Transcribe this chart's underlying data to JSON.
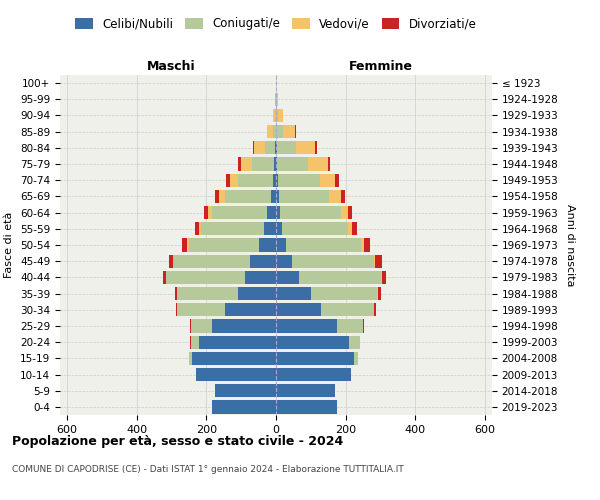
{
  "age_groups": [
    "0-4",
    "5-9",
    "10-14",
    "15-19",
    "20-24",
    "25-29",
    "30-34",
    "35-39",
    "40-44",
    "45-49",
    "50-54",
    "55-59",
    "60-64",
    "65-69",
    "70-74",
    "75-79",
    "80-84",
    "85-89",
    "90-94",
    "95-99",
    "100+"
  ],
  "birth_years": [
    "2019-2023",
    "2014-2018",
    "2009-2013",
    "2004-2008",
    "1999-2003",
    "1994-1998",
    "1989-1993",
    "1984-1988",
    "1979-1983",
    "1974-1978",
    "1969-1973",
    "1964-1968",
    "1959-1963",
    "1954-1958",
    "1949-1953",
    "1944-1948",
    "1939-1943",
    "1934-1938",
    "1929-1933",
    "1924-1928",
    "≤ 1923"
  ],
  "colors": {
    "celibe": "#3a6ea5",
    "coniugato": "#b5c99a",
    "vedovo": "#f4c36a",
    "divorziato": "#cc2222"
  },
  "maschi": {
    "celibe": [
      185,
      175,
      230,
      240,
      220,
      185,
      145,
      110,
      90,
      75,
      50,
      35,
      25,
      15,
      8,
      5,
      2,
      0,
      0,
      0,
      0
    ],
    "coniugato": [
      0,
      0,
      0,
      10,
      25,
      60,
      140,
      175,
      225,
      220,
      200,
      180,
      160,
      130,
      100,
      65,
      30,
      10,
      3,
      2,
      0
    ],
    "vedovo": [
      0,
      0,
      0,
      0,
      0,
      0,
      0,
      0,
      0,
      0,
      5,
      5,
      10,
      20,
      25,
      30,
      30,
      15,
      5,
      1,
      0
    ],
    "divorziato": [
      0,
      0,
      0,
      0,
      1,
      2,
      3,
      5,
      8,
      12,
      15,
      12,
      12,
      10,
      10,
      8,
      5,
      2,
      0,
      0,
      0
    ]
  },
  "femmine": {
    "nubile": [
      175,
      170,
      215,
      225,
      210,
      175,
      130,
      100,
      65,
      45,
      30,
      18,
      12,
      8,
      5,
      3,
      2,
      0,
      0,
      0,
      0
    ],
    "coniugata": [
      0,
      0,
      0,
      10,
      30,
      75,
      150,
      190,
      235,
      235,
      215,
      190,
      175,
      145,
      120,
      90,
      55,
      20,
      5,
      2,
      0
    ],
    "vedova": [
      0,
      0,
      0,
      0,
      0,
      1,
      2,
      2,
      3,
      5,
      8,
      10,
      20,
      35,
      45,
      55,
      55,
      35,
      15,
      5,
      1
    ],
    "divorziata": [
      0,
      0,
      0,
      0,
      1,
      2,
      5,
      8,
      12,
      18,
      18,
      15,
      12,
      10,
      10,
      8,
      5,
      2,
      0,
      0,
      0
    ]
  },
  "xlim": 620,
  "xtick_positions": [
    -600,
    -400,
    -200,
    0,
    200,
    400,
    600
  ],
  "xtick_labels": [
    "600",
    "400",
    "200",
    "0",
    "200",
    "400",
    "600"
  ],
  "title": "Popolazione per età, sesso e stato civile - 2024",
  "subtitle": "COMUNE DI CAPODRISE (CE) - Dati ISTAT 1° gennaio 2024 - Elaborazione TUTTITALIA.IT",
  "ylabel_left": "Fasce di età",
  "ylabel_right": "Anni di nascita",
  "header_left": "Maschi",
  "header_right": "Femmine",
  "legend_labels": [
    "Celibi/Nubili",
    "Coniugati/e",
    "Vedovi/e",
    "Divorziati/e"
  ],
  "legend_colors": [
    "#3a6ea5",
    "#b5c99a",
    "#f4c36a",
    "#cc2222"
  ],
  "bg_color": "#f0f0eb",
  "grid_color": "#cccccc",
  "fig_width": 6.0,
  "fig_height": 5.0,
  "dpi": 100
}
